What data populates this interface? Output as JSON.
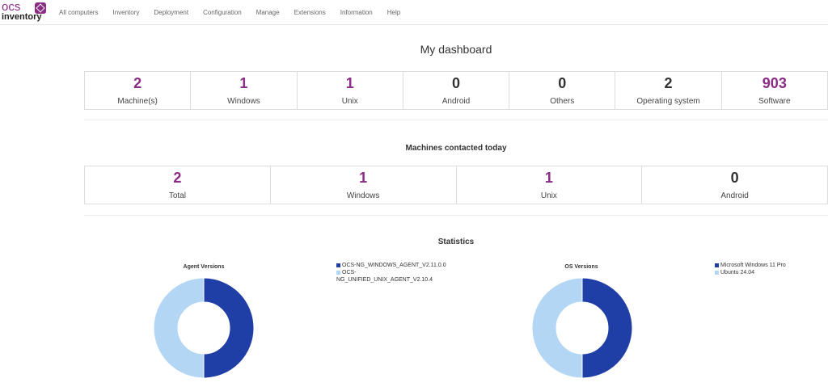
{
  "brand": {
    "line1": "ocs",
    "line2": "inventory"
  },
  "nav": [
    {
      "label": "All computers"
    },
    {
      "label": "Inventory"
    },
    {
      "label": "Deployment"
    },
    {
      "label": "Configuration"
    },
    {
      "label": "Manage"
    },
    {
      "label": "Extensions"
    },
    {
      "label": "Information"
    },
    {
      "label": "Help"
    }
  ],
  "dashboard": {
    "title": "My dashboard",
    "stats": [
      {
        "value": "2",
        "label": "Machine(s)"
      },
      {
        "value": "1",
        "label": "Windows"
      },
      {
        "value": "1",
        "label": "Unix"
      },
      {
        "value": "0",
        "label": "Android"
      },
      {
        "value": "0",
        "label": "Others"
      },
      {
        "value": "2",
        "label": "Operating system"
      },
      {
        "value": "903",
        "label": "Software"
      }
    ]
  },
  "contacted": {
    "title": "Machines contacted today",
    "stats": [
      {
        "value": "2",
        "label": "Total"
      },
      {
        "value": "1",
        "label": "Windows"
      },
      {
        "value": "1",
        "label": "Unix"
      },
      {
        "value": "0",
        "label": "Android"
      }
    ]
  },
  "statistics": {
    "title": "Statistics"
  },
  "colors": {
    "accent": "#8a2b84",
    "series_dark": "#1f3fa6",
    "series_light": "#b3d6f5"
  },
  "chart_data": [
    {
      "type": "pie",
      "title": "Agent Versions",
      "categories": [
        "OCS-NG_WINDOWS_AGENT_V2.11.0.0",
        "OCS-NG_UNIFIED_UNIX_AGENT_V2.10.4"
      ],
      "legend_lines": [
        [
          "OCS-NG_WINDOWS_AGENT_V2.11.0.0"
        ],
        [
          "OCS-",
          "NG_UNIFIED_UNIX_AGENT_V2.10.4"
        ]
      ],
      "values": [
        1,
        1
      ],
      "colors": [
        "#1f3fa6",
        "#b3d6f5"
      ]
    },
    {
      "type": "pie",
      "title": "OS Versions",
      "categories": [
        "Microsoft Windows 11 Pro",
        "Ubuntu 24.04"
      ],
      "legend_lines": [
        [
          "Microsoft Windows 11 Pro"
        ],
        [
          "Ubuntu 24.04"
        ]
      ],
      "values": [
        1,
        1
      ],
      "colors": [
        "#1f3fa6",
        "#b3d6f5"
      ]
    }
  ]
}
